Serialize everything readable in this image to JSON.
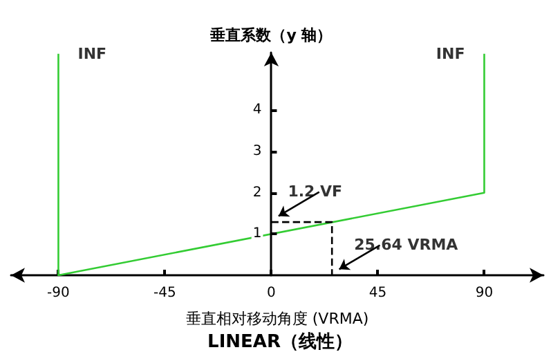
{
  "chart_data": {
    "type": "line",
    "title": "LINEAR（线性）",
    "xlabel": "垂直相对移动角度 (VRMA)",
    "ylabel": "垂直系数（y 轴）",
    "xlim": [
      -110,
      115
    ],
    "xticks": [
      -90,
      -45,
      0,
      45,
      90
    ],
    "ylim": [
      0,
      5.4
    ],
    "yticks": [
      1,
      2,
      3,
      4
    ],
    "series": [
      {
        "color": "#33cc33",
        "x": [
          -90,
          -90,
          90,
          90
        ],
        "values": [
          5.37,
          0,
          2,
          5.37
        ]
      },
      {
        "color": "#000000",
        "line_style": "dashed",
        "x": [
          0,
          25.64,
          25.64
        ],
        "values": [
          1.29,
          1.29,
          0
        ]
      }
    ],
    "annotations": [
      {
        "text": "INF",
        "x": -90,
        "y": 5.37
      },
      {
        "text": "INF",
        "x": 90,
        "y": 5.37
      },
      {
        "text": "1.2 VF",
        "x": 0,
        "y": 1.29
      },
      {
        "text": "25.64 VRMA",
        "x": 25.64,
        "y": 0
      }
    ],
    "grid": false,
    "marker": "none"
  }
}
